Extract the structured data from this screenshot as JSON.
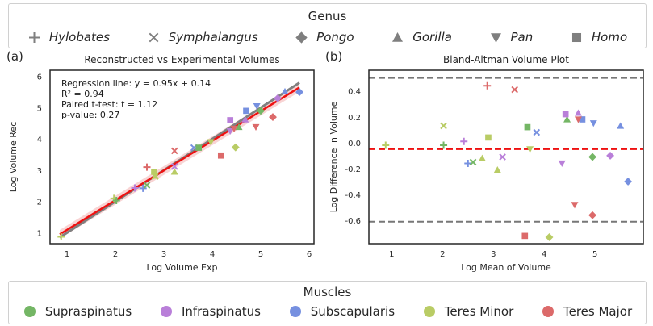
{
  "genus_legend": {
    "title": "Genus",
    "items": [
      {
        "name": "Hylobates",
        "marker": "plus"
      },
      {
        "name": "Symphalangus",
        "marker": "x"
      },
      {
        "name": "Pongo",
        "marker": "diamond"
      },
      {
        "name": "Gorilla",
        "marker": "triangle-up"
      },
      {
        "name": "Pan",
        "marker": "triangle-down"
      },
      {
        "name": "Homo",
        "marker": "square"
      }
    ]
  },
  "muscle_legend": {
    "title": "Muscles",
    "items": [
      {
        "name": "Supraspinatus",
        "color": "#74b665"
      },
      {
        "name": "Infraspinatus",
        "color": "#b97fd9"
      },
      {
        "name": "Subscapularis",
        "color": "#7690e0"
      },
      {
        "name": "Teres Minor",
        "color": "#b9cc65"
      },
      {
        "name": "Teres Major",
        "color": "#dc6a6a"
      }
    ]
  },
  "chart_data": [
    {
      "panel_label": "(a)",
      "type": "scatter",
      "title": "Reconstructed vs Experimental Volumes",
      "xlabel": "Log Volume Exp",
      "ylabel": "Log Volume Rec",
      "xlim": [
        0.65,
        6.1
      ],
      "ylim": [
        0.65,
        6.2
      ],
      "xticks": [
        1,
        2,
        3,
        4,
        5,
        6
      ],
      "yticks": [
        1,
        2,
        3,
        4,
        5,
        6
      ],
      "annotation": [
        "Regression line: y = 0.95x + 0.14",
        "R² = 0.94",
        "Paired t-test: t = 1.12",
        "p-value: 0.27"
      ],
      "lines": [
        {
          "name": "identity",
          "color": "#808080",
          "x": [
            0.85,
            5.8
          ],
          "y": [
            0.85,
            5.8
          ]
        },
        {
          "name": "regression",
          "color": "#ee1111",
          "x": [
            0.85,
            5.8
          ],
          "y": [
            0.95,
            5.65
          ]
        }
      ],
      "points": [
        {
          "x": 0.88,
          "y": 0.87,
          "marker": "plus",
          "color": "#b9cc65"
        },
        {
          "x": 1.97,
          "y": 2.1,
          "marker": "plus",
          "color": "#b9cc65"
        },
        {
          "x": 2.02,
          "y": 2.03,
          "marker": "plus",
          "color": "#74b665"
        },
        {
          "x": 2.4,
          "y": 2.43,
          "marker": "plus",
          "color": "#b97fd9"
        },
        {
          "x": 2.57,
          "y": 2.42,
          "marker": "plus",
          "color": "#7690e0"
        },
        {
          "x": 2.65,
          "y": 3.1,
          "marker": "plus",
          "color": "#dc6a6a"
        },
        {
          "x": 2.65,
          "y": 2.52,
          "marker": "x",
          "color": "#74b665"
        },
        {
          "x": 2.82,
          "y": 2.8,
          "marker": "x",
          "color": "#b9cc65"
        },
        {
          "x": 3.22,
          "y": 3.62,
          "marker": "x",
          "color": "#dc6a6a"
        },
        {
          "x": 3.22,
          "y": 3.12,
          "marker": "x",
          "color": "#b97fd9"
        },
        {
          "x": 3.62,
          "y": 3.72,
          "marker": "x",
          "color": "#7690e0"
        },
        {
          "x": 2.82,
          "y": 2.82,
          "marker": "triangle-up",
          "color": "#b9cc65"
        },
        {
          "x": 3.22,
          "y": 2.95,
          "marker": "triangle-up",
          "color": "#b9cc65"
        },
        {
          "x": 4.55,
          "y": 4.38,
          "marker": "triangle-up",
          "color": "#74b665"
        },
        {
          "x": 4.68,
          "y": 4.62,
          "marker": "triangle-up",
          "color": "#b97fd9"
        },
        {
          "x": 5.5,
          "y": 5.52,
          "marker": "triangle-up",
          "color": "#7690e0"
        },
        {
          "x": 2.8,
          "y": 2.95,
          "marker": "square",
          "color": "#b9cc65"
        },
        {
          "x": 3.72,
          "y": 3.72,
          "marker": "square",
          "color": "#74b665"
        },
        {
          "x": 4.18,
          "y": 3.47,
          "marker": "square",
          "color": "#dc6a6a"
        },
        {
          "x": 4.37,
          "y": 4.6,
          "marker": "square",
          "color": "#b97fd9"
        },
        {
          "x": 4.7,
          "y": 4.9,
          "marker": "square",
          "color": "#7690e0"
        },
        {
          "x": 3.97,
          "y": 3.9,
          "marker": "triangle-down",
          "color": "#b9cc65"
        },
        {
          "x": 4.37,
          "y": 4.25,
          "marker": "triangle-down",
          "color": "#b97fd9"
        },
        {
          "x": 4.45,
          "y": 4.33,
          "marker": "triangle-down",
          "color": "#dc6a6a"
        },
        {
          "x": 4.9,
          "y": 4.38,
          "marker": "triangle-down",
          "color": "#dc6a6a"
        },
        {
          "x": 4.92,
          "y": 5.05,
          "marker": "triangle-down",
          "color": "#7690e0"
        },
        {
          "x": 4.48,
          "y": 3.73,
          "marker": "diamond",
          "color": "#b9cc65"
        },
        {
          "x": 5.0,
          "y": 4.9,
          "marker": "diamond",
          "color": "#74b665"
        },
        {
          "x": 5.25,
          "y": 4.7,
          "marker": "diamond",
          "color": "#dc6a6a"
        },
        {
          "x": 5.35,
          "y": 5.3,
          "marker": "diamond",
          "color": "#b97fd9"
        },
        {
          "x": 5.8,
          "y": 5.5,
          "marker": "diamond",
          "color": "#7690e0"
        }
      ]
    },
    {
      "panel_label": "(b)",
      "type": "scatter",
      "title": "Bland-Altman Volume Plot",
      "xlabel": "Log Mean of Volume",
      "ylabel": "Log Difference in Volume",
      "xlim": [
        0.55,
        5.95
      ],
      "ylim": [
        -0.78,
        0.56
      ],
      "xticks": [
        1,
        2,
        3,
        4,
        5
      ],
      "yticks": [
        0.4,
        0.2,
        0.0,
        -0.2,
        -0.4,
        -0.6
      ],
      "mean_line": {
        "y": -0.05,
        "color": "#ee1111"
      },
      "limit_lines": [
        {
          "y": 0.5,
          "color": "#777777"
        },
        {
          "y": -0.61,
          "color": "#777777"
        }
      ],
      "points": [
        {
          "x": 0.88,
          "y": -0.02,
          "marker": "plus",
          "color": "#b9cc65"
        },
        {
          "x": 2.02,
          "y": -0.02,
          "marker": "plus",
          "color": "#74b665"
        },
        {
          "x": 2.42,
          "y": 0.01,
          "marker": "plus",
          "color": "#b97fd9"
        },
        {
          "x": 2.5,
          "y": -0.16,
          "marker": "plus",
          "color": "#7690e0"
        },
        {
          "x": 2.88,
          "y": 0.44,
          "marker": "plus",
          "color": "#dc6a6a"
        },
        {
          "x": 2.02,
          "y": 0.13,
          "marker": "x",
          "color": "#b9cc65"
        },
        {
          "x": 2.6,
          "y": -0.15,
          "marker": "x",
          "color": "#74b665"
        },
        {
          "x": 3.42,
          "y": 0.41,
          "marker": "x",
          "color": "#dc6a6a"
        },
        {
          "x": 3.18,
          "y": -0.11,
          "marker": "x",
          "color": "#b97fd9"
        },
        {
          "x": 3.85,
          "y": 0.08,
          "marker": "x",
          "color": "#7690e0"
        },
        {
          "x": 2.78,
          "y": -0.12,
          "marker": "triangle-up",
          "color": "#b9cc65"
        },
        {
          "x": 3.08,
          "y": -0.21,
          "marker": "triangle-up",
          "color": "#b9cc65"
        },
        {
          "x": 4.45,
          "y": 0.18,
          "marker": "triangle-up",
          "color": "#74b665"
        },
        {
          "x": 4.67,
          "y": 0.23,
          "marker": "triangle-up",
          "color": "#b97fd9"
        },
        {
          "x": 5.5,
          "y": 0.13,
          "marker": "triangle-up",
          "color": "#7690e0"
        },
        {
          "x": 2.9,
          "y": 0.04,
          "marker": "square",
          "color": "#b9cc65"
        },
        {
          "x": 3.67,
          "y": 0.12,
          "marker": "square",
          "color": "#74b665"
        },
        {
          "x": 3.62,
          "y": -0.72,
          "marker": "square",
          "color": "#dc6a6a"
        },
        {
          "x": 4.42,
          "y": 0.22,
          "marker": "square",
          "color": "#b97fd9"
        },
        {
          "x": 4.75,
          "y": 0.18,
          "marker": "square",
          "color": "#7690e0"
        },
        {
          "x": 3.72,
          "y": -0.05,
          "marker": "triangle-down",
          "color": "#b9cc65"
        },
        {
          "x": 4.35,
          "y": -0.16,
          "marker": "triangle-down",
          "color": "#b97fd9"
        },
        {
          "x": 4.6,
          "y": -0.48,
          "marker": "triangle-down",
          "color": "#dc6a6a"
        },
        {
          "x": 4.67,
          "y": 0.18,
          "marker": "triangle-down",
          "color": "#dc6a6a"
        },
        {
          "x": 4.97,
          "y": 0.15,
          "marker": "triangle-down",
          "color": "#7690e0"
        },
        {
          "x": 4.1,
          "y": -0.73,
          "marker": "diamond",
          "color": "#b9cc65"
        },
        {
          "x": 4.95,
          "y": -0.11,
          "marker": "diamond",
          "color": "#74b665"
        },
        {
          "x": 4.95,
          "y": -0.56,
          "marker": "diamond",
          "color": "#dc6a6a"
        },
        {
          "x": 5.3,
          "y": -0.1,
          "marker": "diamond",
          "color": "#b97fd9"
        },
        {
          "x": 5.65,
          "y": -0.3,
          "marker": "diamond",
          "color": "#7690e0"
        }
      ]
    }
  ]
}
